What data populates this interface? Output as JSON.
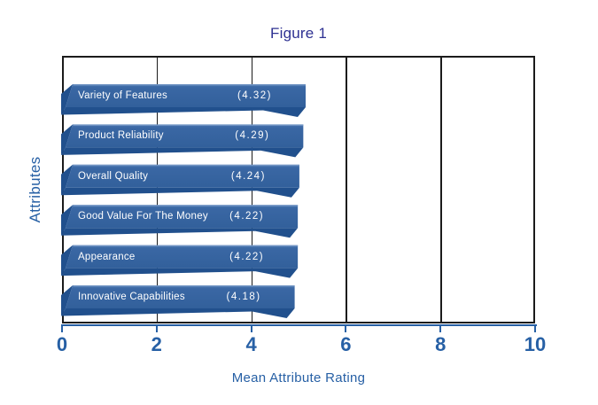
{
  "figure": {
    "title": "Figure 1"
  },
  "chart_data": {
    "type": "bar",
    "orientation": "horizontal",
    "title": "Figure 1",
    "xlabel": "Mean Attribute Rating",
    "ylabel": "Attributes",
    "xlim": [
      0,
      10
    ],
    "x_ticks": [
      "0",
      "2",
      "4",
      "6",
      "8",
      "10"
    ],
    "grid": "vertical gridlines at each x tick, black",
    "legend": "none",
    "categories": [
      "Variety of Features",
      "Product Reliability",
      "Overall Quality",
      "Good Value For The Money",
      "Appearance",
      "Innovative Capabilities"
    ],
    "values": [
      4.32,
      4.29,
      4.24,
      4.22,
      4.22,
      4.18
    ],
    "value_labels": [
      "(4.32)",
      "(4.29)",
      "(4.24)",
      "(4.22)",
      "(4.22)",
      "(4.18)"
    ],
    "colors": {
      "bar_face": "#3A67A4",
      "bar_face_light": "#4B77B0",
      "bar_bevel": "#21508D",
      "bar_highlight": "#7396C5",
      "bar_text": "#FFFFFF",
      "axis_text": "#2760A5",
      "title_text": "#2E3192",
      "grid_line": "#1B1B1B"
    }
  }
}
